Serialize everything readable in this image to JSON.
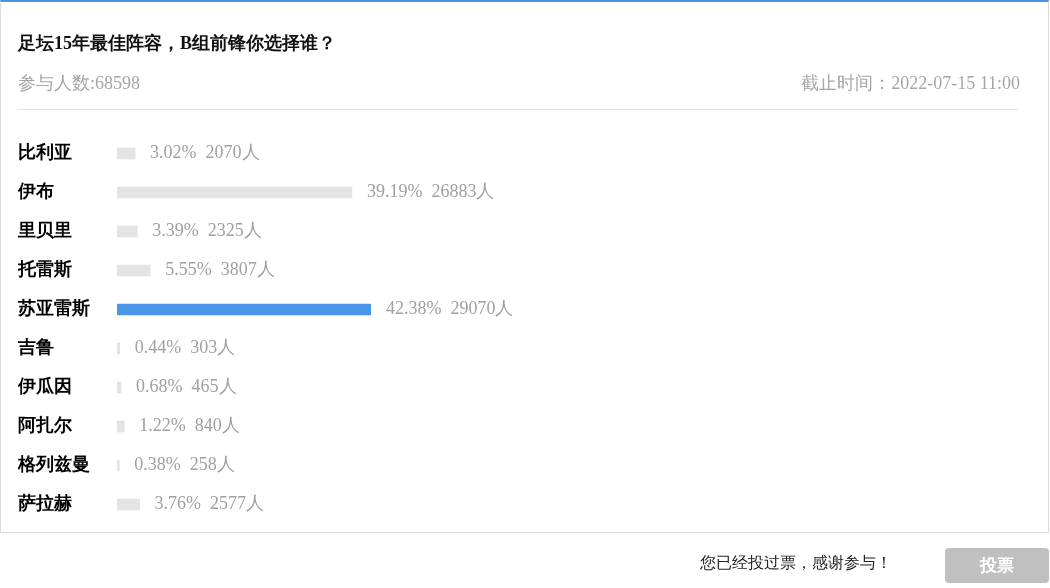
{
  "chart_data": {
    "type": "bar",
    "orientation": "horizontal",
    "title": "足坛15年最佳阵容，B组前锋你选择谁？",
    "categories": [
      "比利亚",
      "伊布",
      "里贝里",
      "托雷斯",
      "苏亚雷斯",
      "吉鲁",
      "伊瓜因",
      "阿扎尔",
      "格列兹曼",
      "萨拉赫"
    ],
    "values": [
      3.02,
      39.19,
      3.39,
      5.55,
      42.38,
      0.44,
      0.68,
      1.22,
      0.38,
      3.76
    ],
    "colors": [
      "#e4e4e4",
      "#e4e4e4",
      "#e4e4e4",
      "#e4e4e4",
      "#4a96e8",
      "#e4e4e4",
      "#e4e4e4",
      "#e4e4e4",
      "#e4e4e4",
      "#e4e4e4"
    ],
    "value_labels": [
      "3.02%  2070人",
      "39.19%  26883人",
      "3.39%  2325人",
      "5.55%  3807人",
      "42.38%  29070人",
      "0.44%  303人",
      "0.68%  465人",
      "1.22%  840人",
      "0.38%  258人",
      "3.76%  2577人"
    ],
    "tick_labels": "y",
    "annotations": [
      "参与人数:68598",
      "截止时间：2022-07-15 11:00",
      "您已经投过票，感谢参与！",
      "投票"
    ]
  }
}
